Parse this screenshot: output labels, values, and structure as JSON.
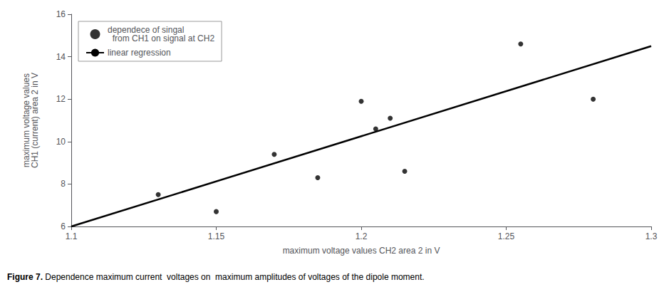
{
  "chart_data": {
    "type": "scatter",
    "xlabel": "maximum voltage values CH2 area 2 in V",
    "ylabel": "maximum voltage values\nCH1 (current) area 2 in V",
    "series": [
      {
        "name": "dependece of singal\n  from CH1 on signal at CH2",
        "type": "scatter",
        "marker": "circle",
        "color": "#000000",
        "x": [
          1.13,
          1.15,
          1.17,
          1.185,
          1.2,
          1.205,
          1.21,
          1.215,
          1.255,
          1.28
        ],
        "values": [
          7.5,
          6.7,
          9.4,
          8.3,
          11.9,
          10.6,
          11.1,
          8.6,
          14.6,
          12.0
        ]
      },
      {
        "name": "linear regression",
        "type": "line",
        "line_style": "solid",
        "color": "#000000",
        "x": [
          1.1,
          1.3
        ],
        "values": [
          6.0,
          14.5
        ]
      }
    ],
    "xlim": [
      1.1,
      1.3
    ],
    "ylim": [
      6.0,
      16.0
    ],
    "xticks": [
      1.1,
      1.15,
      1.2,
      1.25,
      1.3
    ],
    "yticks": [
      6,
      8,
      10,
      12,
      14,
      16
    ],
    "grid": false,
    "legend": "upper left",
    "annotations": [
      {
        "text": "Figure 7.",
        "bold": true
      },
      {
        "text": " Dependence maximum current  voltages on  maximum amplitudes of voltages of the dipole moment."
      }
    ]
  }
}
